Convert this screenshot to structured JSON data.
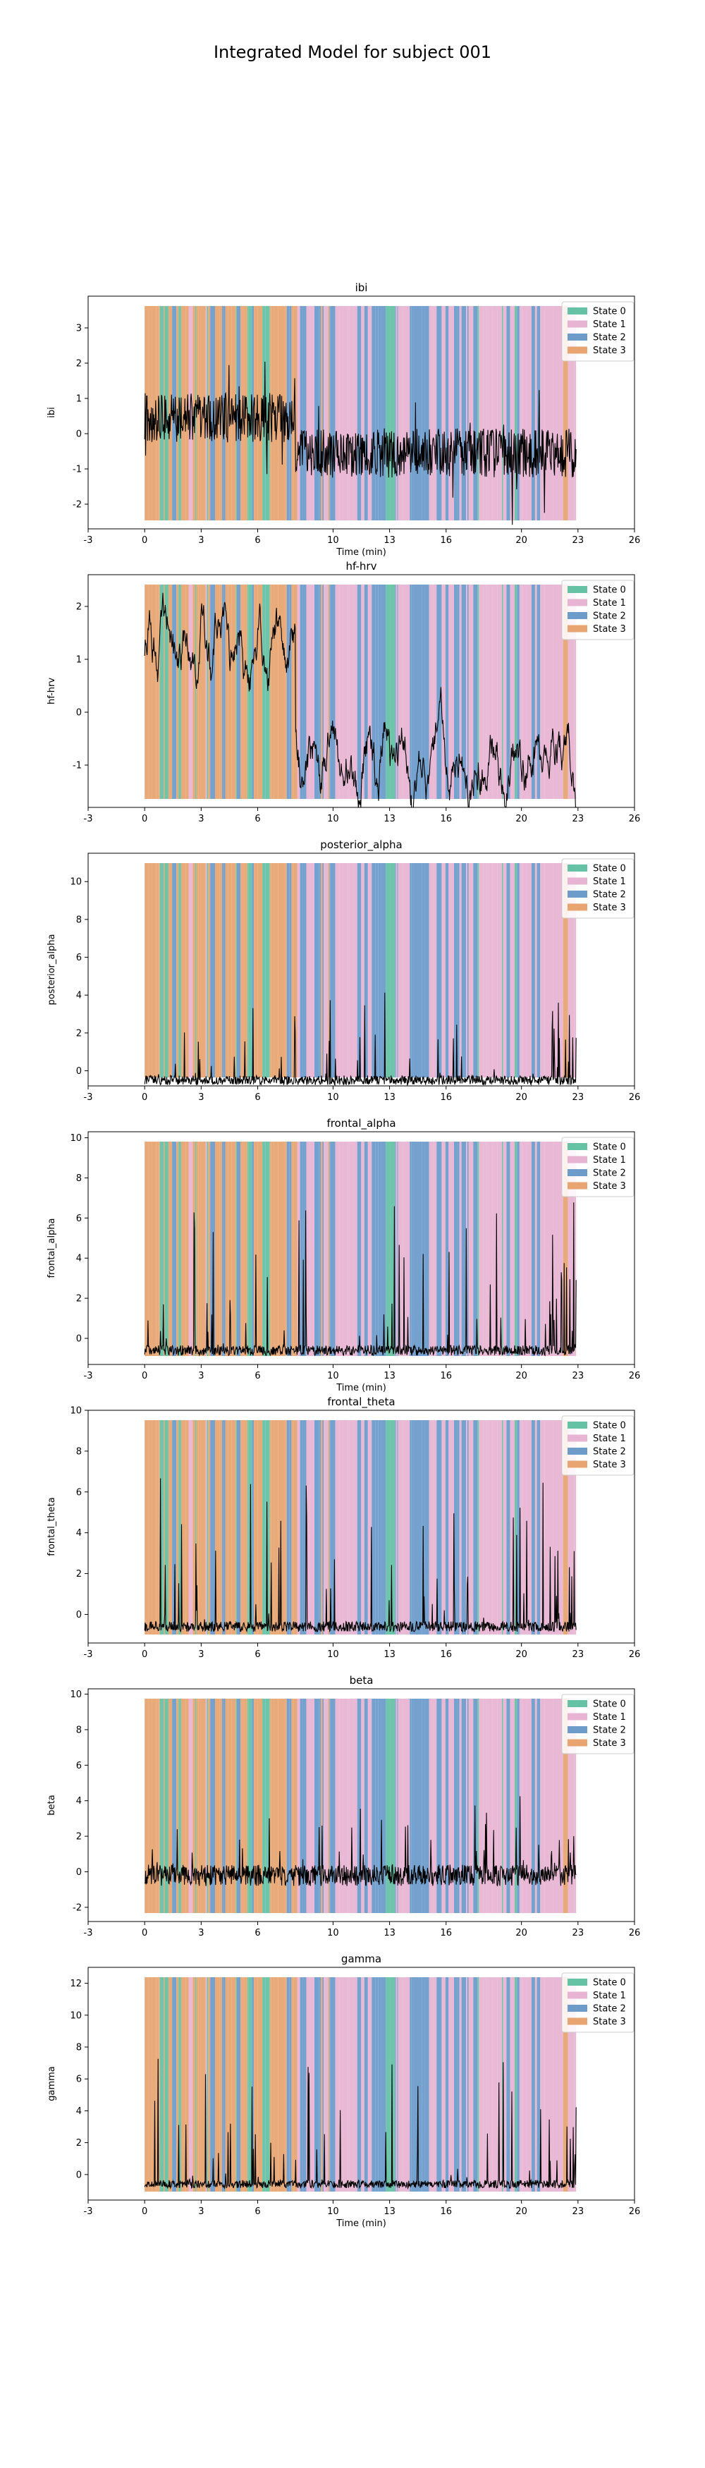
{
  "suptitle": "Integrated Model for subject 001",
  "colors": {
    "state_0": "#66c2a5",
    "state_1": "#e7b4d3",
    "state_2": "#6d9ccb",
    "state_3": "#e8a572",
    "signal": "#000000"
  },
  "chart_data": [
    {
      "type": "line",
      "title": "ibi",
      "xlabel": "Time (min)",
      "ylabel": "ibi",
      "xlim": [
        -3,
        26
      ],
      "xticks": [
        -3,
        0,
        3,
        6,
        10,
        13,
        16,
        20,
        23,
        26
      ],
      "ylim": [
        -2.7,
        3.9
      ],
      "yticks": [
        -2,
        -1,
        0,
        1,
        2,
        3
      ],
      "legend_position": "top-right",
      "legend": [
        "State 0",
        "State 1",
        "State 2",
        "State 3"
      ],
      "state_regions": {
        "x_end": 22.9,
        "dominant_until": 8.0,
        "early_state": "State 3",
        "late_states": [
          "State 1",
          "State 2"
        ]
      },
      "series": [
        {
          "style": "noisy",
          "x_end": 22.9,
          "mean_early": 0.45,
          "mean_late": -0.55,
          "noise": 0.7
        }
      ]
    },
    {
      "type": "line",
      "title": "hf-hrv",
      "xlabel": "",
      "ylabel": "hf-hrv",
      "xlim": [
        -3,
        26
      ],
      "xticks": [
        -3,
        0,
        3,
        6,
        10,
        13,
        16,
        20,
        23,
        26
      ],
      "ylim": [
        -1.8,
        2.6
      ],
      "yticks": [
        -1,
        0,
        1,
        2
      ],
      "legend_position": "top-right",
      "legend": [
        "State 0",
        "State 1",
        "State 2",
        "State 3"
      ],
      "state_regions": {
        "x_end": 22.9,
        "dominant_until": 8.0,
        "early_state": "State 3",
        "late_states": [
          "State 1",
          "State 2"
        ]
      },
      "series": [
        {
          "style": "smooth",
          "x_end": 22.9,
          "mean_early": 1.3,
          "mean_late": -0.9,
          "noise": 0.45
        }
      ]
    },
    {
      "type": "line",
      "title": "posterior_alpha",
      "xlabel": "",
      "ylabel": "posterior_alpha",
      "xlim": [
        -3,
        26
      ],
      "xticks": [
        -3,
        0,
        3,
        6,
        10,
        13,
        16,
        20,
        23,
        26
      ],
      "ylim": [
        -0.8,
        11.5
      ],
      "yticks": [
        0,
        2,
        4,
        6,
        8,
        10
      ],
      "legend_position": "top-right",
      "legend": [
        "State 0",
        "State 1",
        "State 2",
        "State 3"
      ],
      "state_regions": {
        "x_end": 22.9,
        "dominant_until": 8.0,
        "early_state": "State 3",
        "late_states": [
          "State 1",
          "State 2"
        ]
      },
      "series": [
        {
          "style": "spiky",
          "x_end": 22.9,
          "base": -0.5,
          "spike_max": 4.5
        }
      ]
    },
    {
      "type": "line",
      "title": "frontal_alpha",
      "xlabel": "Time (min)",
      "ylabel": "frontal_alpha",
      "xlim": [
        -3,
        26
      ],
      "xticks": [
        -3,
        0,
        3,
        6,
        10,
        13,
        16,
        20,
        23,
        26
      ],
      "ylim": [
        -1.3,
        10.3
      ],
      "yticks": [
        0,
        2,
        4,
        6,
        8,
        10
      ],
      "legend_position": "top-right",
      "legend": [
        "State 0",
        "State 1",
        "State 2",
        "State 3"
      ],
      "state_regions": {
        "x_end": 22.9,
        "dominant_until": 8.0,
        "early_state": "State 3",
        "late_states": [
          "State 1",
          "State 2"
        ]
      },
      "series": [
        {
          "style": "spiky",
          "x_end": 22.9,
          "base": -0.6,
          "spike_max": 7.5
        }
      ]
    },
    {
      "type": "line",
      "title": "frontal_theta",
      "xlabel": "",
      "ylabel": "frontal_theta",
      "xlim": [
        -3,
        26
      ],
      "xticks": [
        -3,
        0,
        3,
        6,
        10,
        13,
        16,
        20,
        23,
        26
      ],
      "ylim": [
        -1.4,
        10.0
      ],
      "yticks": [
        0,
        2,
        4,
        6,
        8,
        10
      ],
      "legend_position": "top-right",
      "legend": [
        "State 0",
        "State 1",
        "State 2",
        "State 3"
      ],
      "state_regions": {
        "x_end": 22.9,
        "dominant_until": 8.0,
        "early_state": "State 3",
        "late_states": [
          "State 1",
          "State 2"
        ]
      },
      "series": [
        {
          "style": "spiky",
          "x_end": 22.9,
          "base": -0.6,
          "spike_max": 7.5
        }
      ]
    },
    {
      "type": "line",
      "title": "beta",
      "xlabel": "",
      "ylabel": "beta",
      "xlim": [
        -3,
        26
      ],
      "xticks": [
        -3,
        0,
        3,
        6,
        10,
        13,
        16,
        20,
        23,
        26
      ],
      "ylim": [
        -2.8,
        10.3
      ],
      "yticks": [
        -2,
        0,
        2,
        4,
        6,
        8,
        10
      ],
      "legend_position": "top-right",
      "legend": [
        "State 0",
        "State 1",
        "State 2",
        "State 3"
      ],
      "state_regions": {
        "x_end": 22.9,
        "dominant_until": 8.0,
        "early_state": "State 3",
        "late_states": [
          "State 1",
          "State 2"
        ]
      },
      "series": [
        {
          "style": "noisy-spiky",
          "x_end": 22.9,
          "base": -0.2,
          "noise": 0.6,
          "spike_max": 4.0
        }
      ]
    },
    {
      "type": "line",
      "title": "gamma",
      "xlabel": "Time (min)",
      "ylabel": "gamma",
      "xlim": [
        -3,
        26
      ],
      "xticks": [
        -3,
        0,
        3,
        6,
        10,
        13,
        16,
        20,
        23,
        26
      ],
      "ylim": [
        -1.6,
        13.0
      ],
      "yticks": [
        0,
        2,
        4,
        6,
        8,
        10,
        12
      ],
      "legend_position": "top-right",
      "legend": [
        "State 0",
        "State 1",
        "State 2",
        "State 3"
      ],
      "state_regions": {
        "x_end": 22.9,
        "dominant_until": 8.0,
        "early_state": "State 3",
        "late_states": [
          "State 1",
          "State 2"
        ]
      },
      "series": [
        {
          "style": "spiky",
          "x_end": 22.9,
          "base": -0.6,
          "spike_max": 7.8
        }
      ]
    }
  ]
}
